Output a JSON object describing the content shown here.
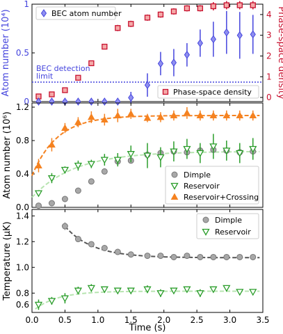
{
  "chart_data": [
    {
      "type": "scatter",
      "panel": "top",
      "x_range": [
        0,
        3.5
      ],
      "ylabel_left": "Atom number (10⁴)",
      "ylabel_right": "Phase-space density",
      "ylim_left": [
        0,
        1.0
      ],
      "ylim_right": [
        -0.2,
        4.5
      ],
      "yticks_left": [
        "0",
        "0.5",
        "1"
      ],
      "yticks_right": [
        "0",
        "1",
        "2",
        "3",
        "4"
      ],
      "annotation": "BEC detection limit",
      "annotation_lines": [
        "BEC detection",
        "limit"
      ],
      "detection_limit": 0.2,
      "legend_position": "top-left / bottom-right",
      "colors": {
        "left_axis": "#4444dd",
        "right_axis": "#c8102e"
      },
      "series": [
        {
          "name": "BEC atom number",
          "axis": "left",
          "color": "#4444dd",
          "marker": "diamond",
          "x": [
            0.1,
            0.3,
            0.5,
            0.7,
            0.9,
            1.1,
            1.3,
            1.5,
            1.75,
            1.95,
            2.15,
            2.35,
            2.55,
            2.75,
            2.95,
            3.15,
            3.35
          ],
          "y": [
            0.0,
            0.0,
            0.0,
            0.0,
            0.0,
            0.0,
            0.0,
            0.04,
            0.17,
            0.39,
            0.4,
            0.48,
            0.6,
            0.64,
            0.71,
            0.68,
            0.69
          ],
          "err": [
            0,
            0,
            0,
            0,
            0,
            0,
            0,
            0.06,
            0.12,
            0.12,
            0.14,
            0.12,
            0.14,
            0.18,
            0.22,
            0.24,
            0.2
          ]
        },
        {
          "name": "Phase-space density",
          "axis": "right",
          "color": "#c8102e",
          "marker": "square",
          "x": [
            0.1,
            0.3,
            0.5,
            0.7,
            0.9,
            1.1,
            1.3,
            1.5,
            1.75,
            1.95,
            2.15,
            2.35,
            2.55,
            2.75,
            2.95,
            3.15,
            3.35
          ],
          "y": [
            0.05,
            0.15,
            0.35,
            0.95,
            1.65,
            2.45,
            3.35,
            3.55,
            3.85,
            4.0,
            4.15,
            4.3,
            4.3,
            4.4,
            4.45,
            4.45,
            4.45
          ],
          "err": [
            0.05,
            0.05,
            0.05,
            0.1,
            0.1,
            0.12,
            0.15,
            0.15,
            0.15,
            0.15,
            0.15,
            0.15,
            0.15,
            0.2,
            0.2,
            0.2,
            0.2
          ]
        }
      ]
    },
    {
      "type": "scatter",
      "panel": "middle",
      "x_range": [
        0,
        3.5
      ],
      "ylabel": "Atom number (10⁶)",
      "ylim": [
        0,
        1.25
      ],
      "yticks": [
        "0.0",
        "0.4",
        "0.8",
        "1.2"
      ],
      "legend_position": "bottom-right",
      "series": [
        {
          "name": "Dimple",
          "color": "#a8a8a8",
          "marker": "circle",
          "x": [
            0.1,
            0.3,
            0.5,
            0.7,
            0.9,
            1.1,
            1.3,
            1.5,
            1.75,
            1.95,
            2.15,
            2.35,
            2.55,
            2.75,
            2.95,
            3.15,
            3.35
          ],
          "y": [
            0.02,
            0.05,
            0.1,
            0.2,
            0.31,
            0.43,
            0.55,
            0.56,
            0.63,
            0.65,
            0.67,
            0.66,
            0.68,
            0.69,
            0.68,
            0.66,
            0.67
          ],
          "err": []
        },
        {
          "name": "Reservoir",
          "color": "#2a9d2a",
          "marker": "triangle-down",
          "fit_color": "#b7e4b0",
          "x": [
            0.1,
            0.3,
            0.5,
            0.7,
            0.9,
            1.1,
            1.3,
            1.5,
            1.75,
            1.95,
            2.15,
            2.35,
            2.55,
            2.75,
            2.95,
            3.15,
            3.35
          ],
          "y": [
            0.17,
            0.35,
            0.45,
            0.5,
            0.52,
            0.57,
            0.57,
            0.64,
            0.62,
            0.6,
            0.67,
            0.7,
            0.65,
            0.73,
            0.68,
            0.65,
            0.7
          ],
          "err": [
            0.03,
            0.06,
            0.04,
            0.06,
            0.05,
            0.07,
            0.08,
            0.1,
            0.15,
            0.12,
            0.12,
            0.12,
            0.12,
            0.15,
            0.12,
            0.12,
            0.13
          ]
        },
        {
          "name": "Reservoir+Crossing",
          "color": "#f58220",
          "marker": "triangle-up",
          "x": [
            0.1,
            0.3,
            0.5,
            0.7,
            0.9,
            1.1,
            1.3,
            1.5,
            1.75,
            1.95,
            2.15,
            2.35,
            2.55,
            2.75,
            2.95,
            3.15,
            3.35
          ],
          "y": [
            0.5,
            0.75,
            0.95,
            1.02,
            1.08,
            1.05,
            1.1,
            1.12,
            1.07,
            1.08,
            1.1,
            1.13,
            1.1,
            1.1,
            1.1,
            1.1,
            1.1
          ],
          "err": [
            0.08,
            0.08,
            0.06,
            0.06,
            0.07,
            0.07,
            0.08,
            0.06,
            0.05,
            0.06,
            0.06,
            0.07,
            0.06,
            0.06,
            0.06,
            0.06,
            0.06
          ]
        }
      ]
    },
    {
      "type": "scatter",
      "panel": "bottom",
      "x_range": [
        0,
        3.5
      ],
      "xlabel": "Time (s)",
      "xticks": [
        "0.0",
        "0.5",
        "1.0",
        "1.5",
        "2.0",
        "2.5",
        "3.0",
        "3.5"
      ],
      "ylabel": "Temperature (µK)",
      "ylim": [
        0.65,
        1.45
      ],
      "yticks": [
        "0.6",
        "0.8",
        "1.0",
        "1.2",
        "1.4"
      ],
      "legend_position": "top-right",
      "series": [
        {
          "name": "Dimple",
          "color": "#a8a8a8",
          "marker": "circle",
          "x": [
            0.5,
            0.7,
            0.9,
            1.1,
            1.3,
            1.5,
            1.75,
            1.95,
            2.15,
            2.35,
            2.55,
            2.75,
            2.95,
            3.15,
            3.35
          ],
          "y": [
            1.32,
            1.22,
            1.18,
            1.15,
            1.12,
            1.1,
            1.09,
            1.09,
            1.08,
            1.09,
            1.08,
            1.08,
            1.08,
            1.08,
            1.08
          ],
          "err": [
            0.03,
            0.02,
            0.02,
            0.02,
            0.02,
            0.02,
            0.02,
            0.02,
            0.02,
            0.02,
            0.02,
            0.02,
            0.02,
            0.02,
            0.02
          ]
        },
        {
          "name": "Reservoir",
          "color": "#2a9d2a",
          "marker": "triangle-down",
          "fit_color": "#b7e4b0",
          "x": [
            0.1,
            0.3,
            0.5,
            0.7,
            0.9,
            1.1,
            1.3,
            1.5,
            1.75,
            1.95,
            2.15,
            2.35,
            2.55,
            2.75,
            2.95,
            3.15,
            3.35
          ],
          "y": [
            0.71,
            0.74,
            0.76,
            0.82,
            0.84,
            0.83,
            0.82,
            0.82,
            0.83,
            0.8,
            0.82,
            0.83,
            0.8,
            0.83,
            0.84,
            0.81,
            0.81
          ],
          "err": [
            0.04,
            0.03,
            0.04,
            0.03,
            0.03,
            0.02,
            0.02,
            0.02,
            0.03,
            0.03,
            0.02,
            0.02,
            0.03,
            0.02,
            0.02,
            0.02,
            0.02
          ]
        }
      ]
    }
  ]
}
